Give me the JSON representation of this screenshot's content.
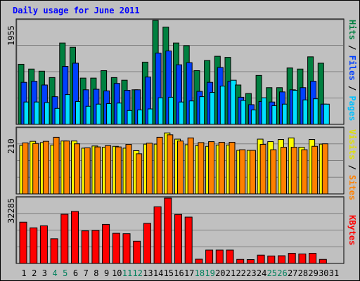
{
  "title": "Daily usage for June 2011",
  "colors": {
    "hits": "#008040",
    "files": "#0040ff",
    "pages": "#00e0ff",
    "visits": "#ffff00",
    "sites": "#ff8000",
    "kbytes": "#ff0000",
    "weekend_day": "#00805c",
    "weekday": "#000000",
    "title": "#0000ff",
    "panel_bg": "#c0c0c0"
  },
  "panel_labels": {
    "top": [
      {
        "text": "Pages",
        "color": "#00c0ff"
      },
      {
        "text": " / ",
        "color": "#000000"
      },
      {
        "text": "Files",
        "color": "#0040ff"
      },
      {
        "text": " / ",
        "color": "#000000"
      },
      {
        "text": "Hits",
        "color": "#008040"
      }
    ],
    "middle": [
      {
        "text": "Sites",
        "color": "#ff8000"
      },
      {
        "text": " / ",
        "color": "#000000"
      },
      {
        "text": "Visits",
        "color": "#e0e000"
      }
    ],
    "bottom": [
      {
        "text": "KBytes",
        "color": "#ff0000"
      }
    ]
  },
  "chart_data": [
    {
      "type": "bar",
      "panel": "top",
      "y_max_label": "1955",
      "ylim": [
        0,
        1955
      ],
      "categories": [
        "1",
        "2",
        "3",
        "4",
        "5",
        "6",
        "7",
        "8",
        "9",
        "10",
        "11",
        "12",
        "13",
        "14",
        "15",
        "16",
        "17",
        "18",
        "19",
        "20",
        "21",
        "22",
        "23",
        "24",
        "25",
        "26",
        "27",
        "28",
        "29",
        "30",
        "31"
      ],
      "series": [
        {
          "name": "Hits",
          "values": [
            1130,
            1040,
            1000,
            880,
            1530,
            1450,
            870,
            870,
            1010,
            880,
            830,
            650,
            1170,
            1955,
            1830,
            1530,
            1480,
            1010,
            1200,
            1280,
            1260,
            740,
            580,
            920,
            690,
            690,
            1060,
            1040,
            1270,
            1150,
            0
          ]
        },
        {
          "name": "Files",
          "values": [
            790,
            810,
            740,
            520,
            1090,
            1150,
            650,
            660,
            630,
            770,
            640,
            650,
            890,
            1340,
            1380,
            1120,
            1160,
            620,
            790,
            1070,
            810,
            510,
            370,
            430,
            420,
            610,
            650,
            690,
            810,
            380,
            0
          ]
        },
        {
          "name": "Pages",
          "values": [
            420,
            420,
            410,
            300,
            560,
            430,
            340,
            380,
            390,
            400,
            260,
            270,
            290,
            500,
            510,
            420,
            440,
            520,
            600,
            720,
            830,
            450,
            270,
            500,
            350,
            380,
            640,
            460,
            480,
            380,
            0
          ]
        }
      ]
    },
    {
      "type": "bar",
      "panel": "middle",
      "y_max_label": "210",
      "ylim": [
        0,
        210
      ],
      "categories": [
        "1",
        "2",
        "3",
        "4",
        "5",
        "6",
        "7",
        "8",
        "9",
        "10",
        "11",
        "12",
        "13",
        "14",
        "15",
        "16",
        "17",
        "18",
        "19",
        "20",
        "21",
        "22",
        "23",
        "24",
        "25",
        "26",
        "27",
        "28",
        "29",
        "30",
        "31"
      ],
      "series": [
        {
          "name": "Visits",
          "values": [
            156,
            169,
            165,
            157,
            170,
            170,
            147,
            154,
            150,
            153,
            147,
            139,
            160,
            160,
            196,
            176,
            158,
            155,
            153,
            157,
            157,
            140,
            140,
            176,
            168,
            175,
            180,
            150,
            175,
            160,
            0
          ]
        },
        {
          "name": "Sites",
          "values": [
            164,
            162,
            169,
            182,
            170,
            161,
            148,
            151,
            155,
            151,
            159,
            129,
            163,
            182,
            190,
            170,
            180,
            165,
            168,
            166,
            166,
            142,
            140,
            159,
            142,
            150,
            150,
            142,
            153,
            161,
            0
          ]
        }
      ]
    },
    {
      "type": "bar",
      "panel": "bottom",
      "y_max_label": "32285",
      "ylim": [
        0,
        32285
      ],
      "categories": [
        "1",
        "2",
        "3",
        "4",
        "5",
        "6",
        "7",
        "8",
        "9",
        "10",
        "11",
        "12",
        "13",
        "14",
        "15",
        "16",
        "17",
        "18",
        "19",
        "20",
        "21",
        "22",
        "23",
        "24",
        "25",
        "26",
        "27",
        "28",
        "29",
        "30",
        "31"
      ],
      "series": [
        {
          "name": "KBytes",
          "values": [
            20400,
            17600,
            18600,
            12200,
            24300,
            25700,
            16100,
            16300,
            19300,
            14900,
            14700,
            11000,
            19800,
            28000,
            32285,
            24200,
            22900,
            2100,
            6600,
            6600,
            6600,
            2000,
            1900,
            4100,
            3700,
            3800,
            5000,
            4700,
            5000,
            2000,
            0
          ]
        }
      ]
    }
  ],
  "x_label_colors_by_day": [
    "weekday",
    "weekday",
    "weekday",
    "weekend_day",
    "weekend_day",
    "weekday",
    "weekday",
    "weekday",
    "weekday",
    "weekday",
    "weekend_day",
    "weekend_day",
    "weekday",
    "weekday",
    "weekday",
    "weekday",
    "weekday",
    "weekend_day",
    "weekend_day",
    "weekday",
    "weekday",
    "weekday",
    "weekday",
    "weekday",
    "weekend_day",
    "weekend_day",
    "weekday",
    "weekday",
    "weekday",
    "weekday",
    "weekday"
  ]
}
